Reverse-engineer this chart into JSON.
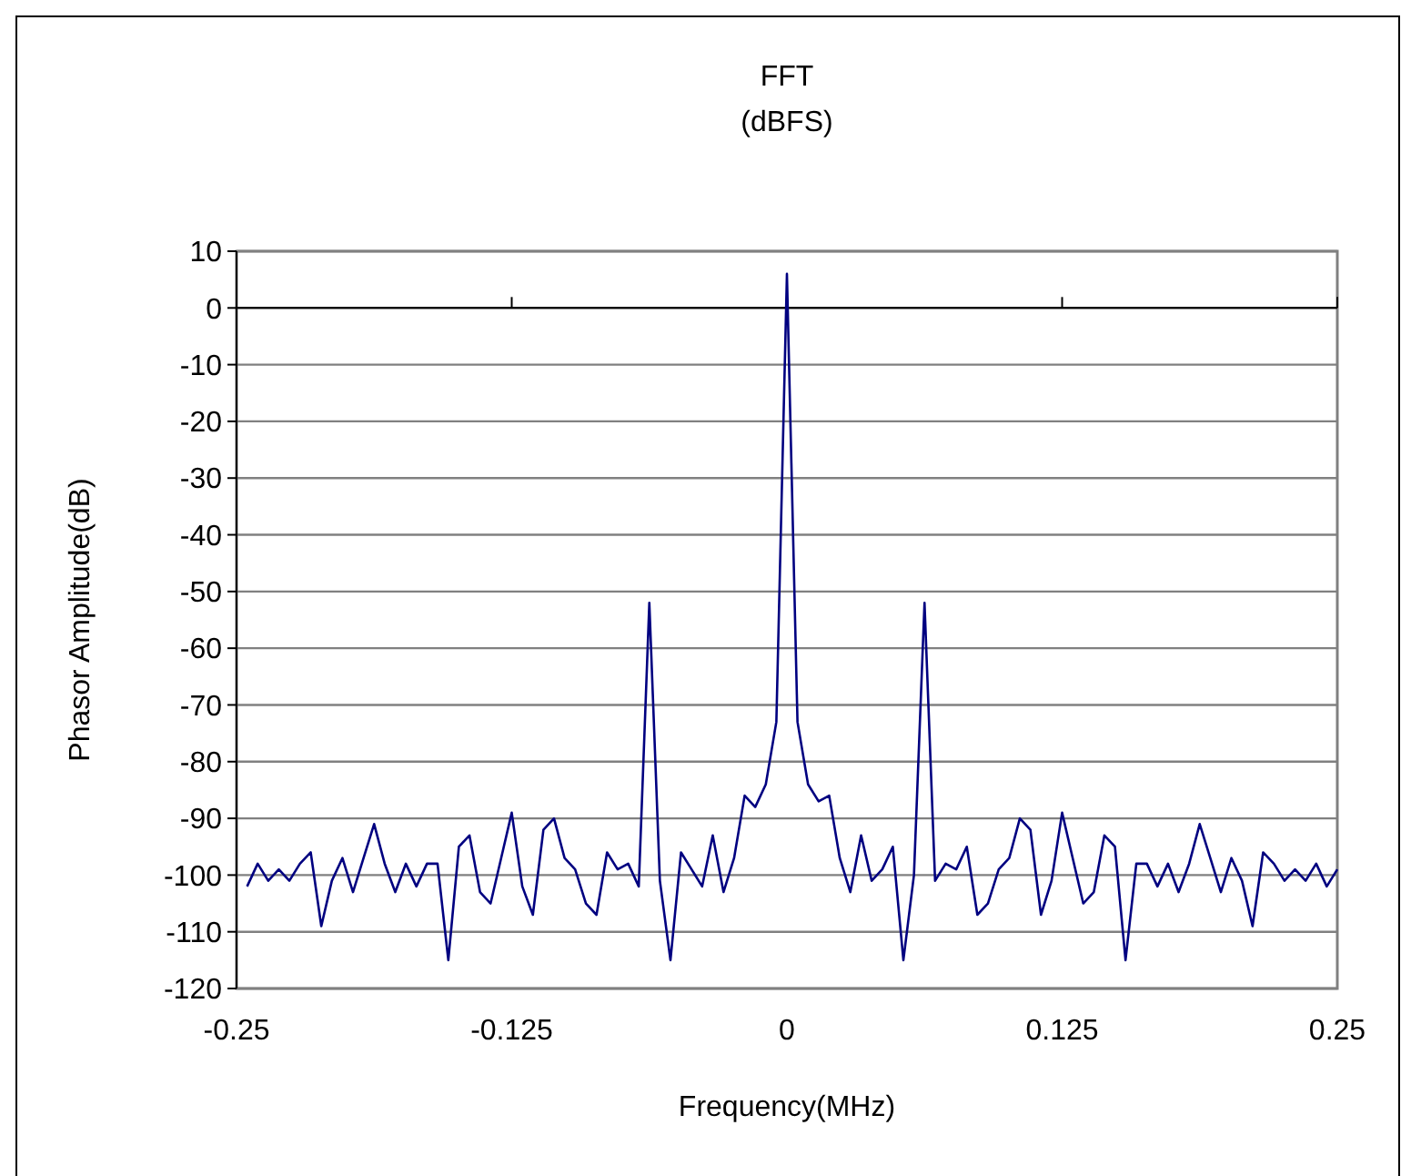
{
  "chart_data": {
    "type": "line",
    "title": "FFT",
    "subtitle": "(dBFS)",
    "xlabel": "Frequency(MHz)",
    "ylabel": "Phasor Amplitude(dB)",
    "x": [
      -0.2452,
      -0.2404,
      -0.2356,
      -0.2308,
      -0.226,
      -0.2212,
      -0.2163,
      -0.2115,
      -0.2067,
      -0.2019,
      -0.1971,
      -0.1923,
      -0.1875,
      -0.1827,
      -0.1779,
      -0.1731,
      -0.1683,
      -0.1635,
      -0.1587,
      -0.1538,
      -0.149,
      -0.1442,
      -0.1394,
      -0.1346,
      -0.1298,
      -0.125,
      -0.1202,
      -0.1154,
      -0.1106,
      -0.1058,
      -0.101,
      -0.0962,
      -0.0913,
      -0.0865,
      -0.0817,
      -0.0769,
      -0.0721,
      -0.0673,
      -0.0625,
      -0.0577,
      -0.0529,
      -0.0481,
      -0.0433,
      -0.0385,
      -0.0337,
      -0.0288,
      -0.024,
      -0.0192,
      -0.0144,
      -0.0096,
      -0.0048,
      0,
      0.0048,
      0.0096,
      0.0144,
      0.0192,
      0.024,
      0.0288,
      0.0337,
      0.0385,
      0.0433,
      0.0481,
      0.0529,
      0.0577,
      0.0625,
      0.0673,
      0.0721,
      0.0769,
      0.0817,
      0.0865,
      0.0913,
      0.0962,
      0.101,
      0.1058,
      0.1106,
      0.1154,
      0.1202,
      0.125,
      0.1298,
      0.1346,
      0.1394,
      0.1442,
      0.149,
      0.1538,
      0.1587,
      0.1635,
      0.1683,
      0.1731,
      0.1779,
      0.1827,
      0.1875,
      0.1923,
      0.1971,
      0.2019,
      0.2067,
      0.2115,
      0.2163,
      0.2212,
      0.226,
      0.2308,
      0.2356,
      0.2404,
      0.2452,
      0.25
    ],
    "series": [
      {
        "color": "#000080",
        "values": [
          -102,
          -98,
          -101,
          -99,
          -101,
          -98,
          -96,
          -109,
          -101,
          -97,
          -103,
          -97,
          -91,
          -98,
          -103,
          -98,
          -102,
          -98,
          -98,
          -115,
          -95,
          -93,
          -103,
          -105,
          -97,
          -89,
          -102,
          -107,
          -92,
          -90,
          -97,
          -99,
          -105,
          -107,
          -96,
          -99,
          -98,
          -102,
          -52,
          -101,
          -115,
          -96,
          -99,
          -102,
          -93,
          -103,
          -97,
          -86,
          -88,
          -84,
          -73,
          6,
          -73,
          -84,
          -87,
          -86,
          -97,
          -103,
          -93,
          -101,
          -99,
          -95,
          -115,
          -100,
          -52,
          -101,
          -98,
          -99,
          -95,
          -107,
          -105,
          -99,
          -97,
          -90,
          -92,
          -107,
          -101,
          -89,
          -97,
          -105,
          -103,
          -93,
          -95,
          -115,
          -98,
          -98,
          -102,
          -98,
          -103,
          -98,
          -91,
          -97,
          -103,
          -97,
          -101,
          -109,
          -96,
          -98,
          -101,
          -99,
          -101,
          -98,
          -102,
          -99
        ]
      }
    ],
    "xlim": [
      -0.25,
      0.25
    ],
    "xticks": [
      -0.25,
      -0.125,
      0,
      0.125,
      0.25
    ],
    "ylim": [
      -120,
      10
    ],
    "yticks": [
      -120,
      -110,
      -100,
      -90,
      -80,
      -70,
      -60,
      -50,
      -40,
      -30,
      -20,
      -10,
      0,
      10
    ],
    "grid": "y"
  }
}
